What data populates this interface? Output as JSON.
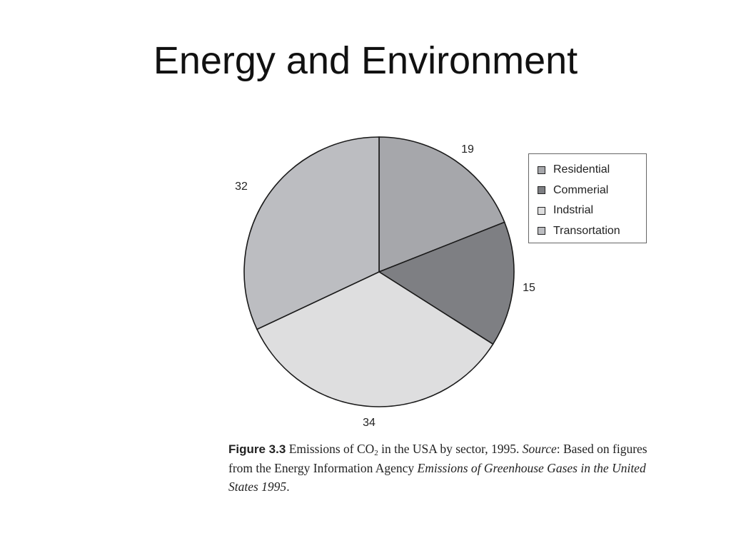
{
  "slide": {
    "title": "Energy and Environment"
  },
  "chart_data": {
    "type": "pie",
    "categories": [
      "Residential",
      "Commerial",
      "Indstrial",
      "Transortation"
    ],
    "values": [
      19,
      15,
      34,
      32
    ],
    "data_labels": [
      "19",
      "15",
      "34",
      "32"
    ],
    "legend_placement": "right",
    "colors": [
      "#a6a7ab",
      "#7e7f83",
      "#dededf",
      "#bcbdc1"
    ],
    "start_angle_deg": 0,
    "direction": "clockwise"
  },
  "caption": {
    "figure_label": "Figure 3.3",
    "text_before_sub": " Emissions of CO",
    "subscript": "2",
    "text_mid": "  in the USA by sector, 1995. ",
    "source_label": "Source",
    "text_after_source": ": Based on figures from the Energy Information Agency ",
    "italic_title": "Emissions of Greenhouse Gases in the United States 1995",
    "end": "."
  }
}
